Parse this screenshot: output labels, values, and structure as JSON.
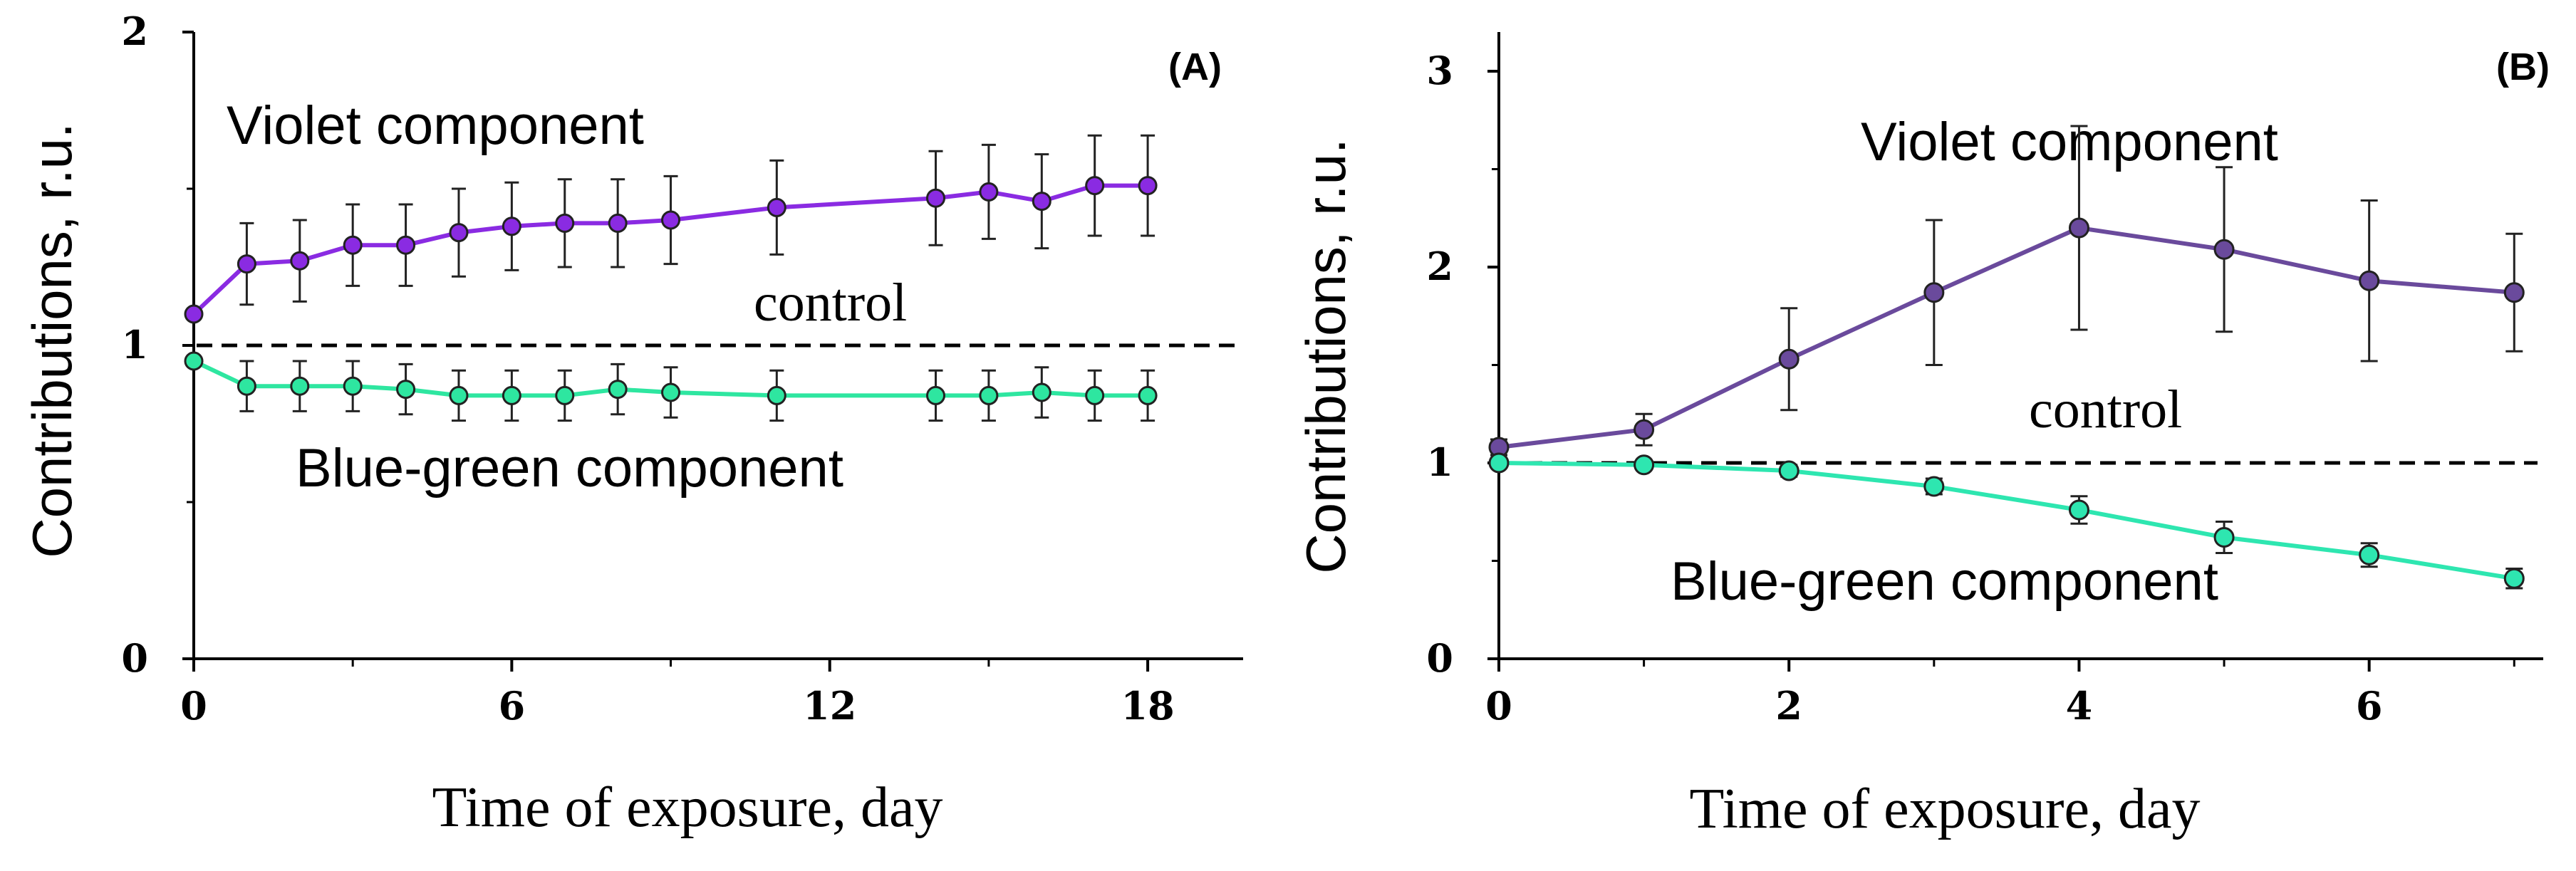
{
  "chart_data": [
    {
      "type": "line",
      "panel_label": "(A)",
      "xlabel": "Time of exposure, day",
      "ylabel": "Contributions, r.u.",
      "xlim": [
        0,
        19.8
      ],
      "ylim": [
        0,
        2
      ],
      "xticks": [
        0,
        6,
        12,
        18
      ],
      "yticks": [
        0,
        1,
        2
      ],
      "xtick_labels": [
        "0",
        "6",
        "12",
        "18"
      ],
      "ytick_labels": [
        "0",
        "1",
        "2"
      ],
      "control": {
        "label": "control",
        "value": 1
      },
      "series": [
        {
          "name": "Violet component",
          "color": "#8a2be2",
          "x": [
            0,
            1,
            2,
            3,
            4,
            5,
            6,
            7,
            8,
            9,
            11,
            14,
            15,
            16,
            17,
            18
          ],
          "y": [
            1.1,
            1.26,
            1.27,
            1.32,
            1.32,
            1.36,
            1.38,
            1.39,
            1.39,
            1.4,
            1.44,
            1.47,
            1.49,
            1.46,
            1.51,
            1.51
          ],
          "err": [
            0,
            0.13,
            0.13,
            0.13,
            0.13,
            0.14,
            0.14,
            0.14,
            0.14,
            0.14,
            0.15,
            0.15,
            0.15,
            0.15,
            0.16,
            0.16
          ]
        },
        {
          "name": "Blue-green component",
          "color": "#2ee6a0",
          "x": [
            0,
            1,
            2,
            3,
            4,
            5,
            6,
            7,
            8,
            9,
            11,
            14,
            15,
            16,
            17,
            18
          ],
          "y": [
            0.95,
            0.87,
            0.87,
            0.87,
            0.86,
            0.84,
            0.84,
            0.84,
            0.86,
            0.85,
            0.84,
            0.84,
            0.84,
            0.85,
            0.84,
            0.84
          ],
          "err": [
            0,
            0.08,
            0.08,
            0.08,
            0.08,
            0.08,
            0.08,
            0.08,
            0.08,
            0.08,
            0.08,
            0.08,
            0.08,
            0.08,
            0.08,
            0.08
          ]
        }
      ]
    },
    {
      "type": "line",
      "panel_label": "(B)",
      "xlabel": "Time of exposure, day",
      "ylabel": "Contributions, r.u.",
      "xlim": [
        0,
        7.2
      ],
      "ylim": [
        0,
        3.2
      ],
      "xticks": [
        0,
        2,
        4,
        6
      ],
      "yticks": [
        0,
        1,
        2,
        3
      ],
      "xtick_labels": [
        "0",
        "2",
        "4",
        "6"
      ],
      "ytick_labels": [
        "0",
        "1",
        "2",
        "3"
      ],
      "control": {
        "label": "control",
        "value": 1
      },
      "series": [
        {
          "name": "Violet component",
          "color": "#6a4a9c",
          "x": [
            0,
            1,
            2,
            3,
            4,
            5,
            6,
            7
          ],
          "y": [
            1.08,
            1.17,
            1.53,
            1.87,
            2.2,
            2.09,
            1.93,
            1.87
          ],
          "err": [
            0.04,
            0.08,
            0.26,
            0.37,
            0.52,
            0.42,
            0.41,
            0.3
          ]
        },
        {
          "name": "Blue-green component",
          "color": "#2ee6b0",
          "x": [
            0,
            1,
            2,
            3,
            4,
            5,
            6,
            7
          ],
          "y": [
            1.0,
            0.99,
            0.96,
            0.88,
            0.76,
            0.62,
            0.53,
            0.41
          ],
          "err": [
            0.02,
            0.02,
            0.03,
            0.04,
            0.07,
            0.08,
            0.06,
            0.05
          ]
        }
      ]
    }
  ]
}
